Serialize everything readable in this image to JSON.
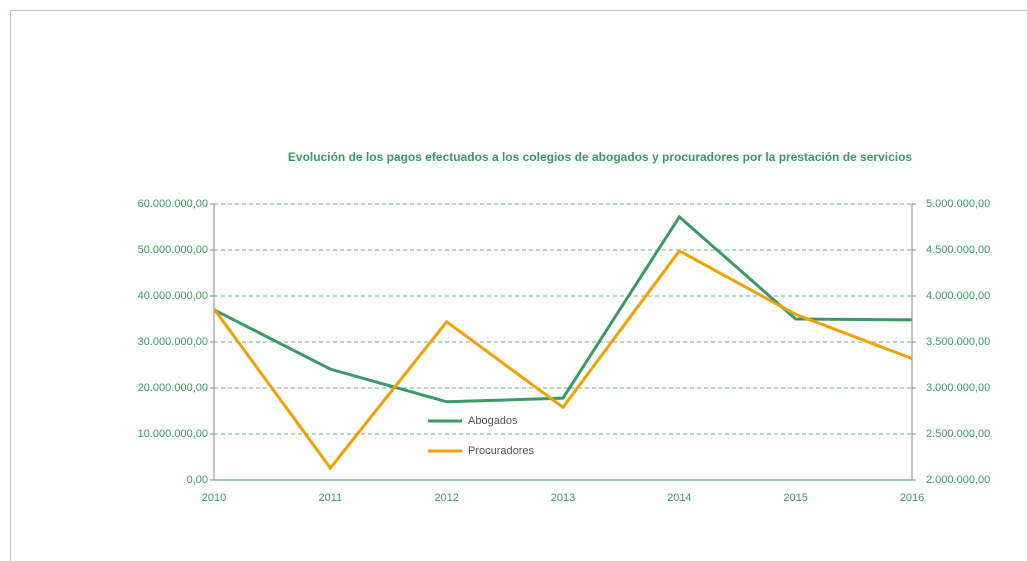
{
  "chart_data": {
    "type": "line",
    "title": "Evolución de los pagos efectuados a los colegios de abogados y procuradores por la prestación de servicios",
    "categories": [
      "2010",
      "2011",
      "2012",
      "2013",
      "2014",
      "2015",
      "2016"
    ],
    "series": [
      {
        "name": "Abogados",
        "color": "#3a9a66",
        "values": [
          37000000,
          24100000,
          17000000,
          17800000,
          57200000,
          35000000,
          34800000
        ]
      },
      {
        "name": "Procuradores",
        "color": "#f5a000",
        "axis": "y2",
        "values": [
          3860000,
          2130000,
          3720000,
          2790000,
          4490000,
          3800000,
          3320000
        ]
      }
    ],
    "ylim": [
      0,
      60000000
    ],
    "yticks": [
      {
        "value": 0,
        "label": "0,00"
      },
      {
        "value": 10000000,
        "label": "10.000.000,00"
      },
      {
        "value": 20000000,
        "label": "20.000.000,00"
      },
      {
        "value": 30000000,
        "label": "30.000.000,00"
      },
      {
        "value": 40000000,
        "label": "40.000.000,00"
      },
      {
        "value": 50000000,
        "label": "50.000.000,00"
      },
      {
        "value": 60000000,
        "label": "60.000.000,00"
      }
    ],
    "y2lim": [
      2000000,
      5000000
    ],
    "y2ticks": [
      {
        "value": 2000000,
        "label": "2.000.000,00"
      },
      {
        "value": 2500000,
        "label": "2.500.000,00"
      },
      {
        "value": 3000000,
        "label": "3.000.000,00"
      },
      {
        "value": 3500000,
        "label": "3.500.000,00"
      },
      {
        "value": 4000000,
        "label": "4.000.000,00"
      },
      {
        "value": 4500000,
        "label": "4.500.000,00"
      },
      {
        "value": 5000000,
        "label": "5.000.000,00"
      }
    ],
    "grid": true
  }
}
